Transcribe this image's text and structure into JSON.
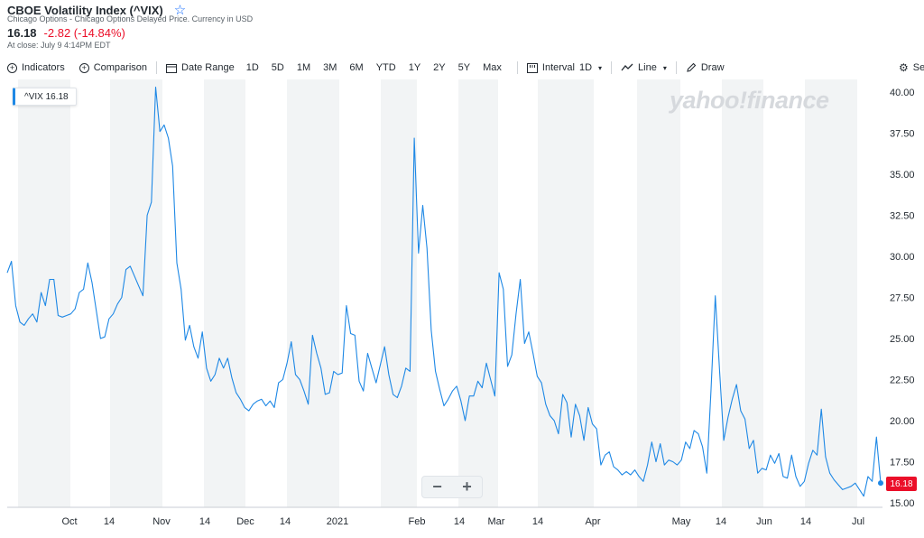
{
  "header": {
    "title": "CBOE Volatility Index (^VIX)",
    "subtitle": "Chicago Options - Chicago Options Delayed Price. Currency in USD",
    "price": "16.18",
    "change": "-2.82 (-14.84%)",
    "close_time": "At close: July 9 4:14PM EDT"
  },
  "toolbar": {
    "indicators": "Indicators",
    "comparison": "Comparison",
    "date_range": "Date Range",
    "ranges": [
      "1D",
      "5D",
      "1M",
      "3M",
      "6M",
      "YTD",
      "1Y",
      "2Y",
      "5Y",
      "Max"
    ],
    "interval_label": "Interval",
    "interval_value": "1D",
    "line": "Line",
    "draw": "Draw",
    "settings": "Se"
  },
  "legend": {
    "label": "^VIX 16.18"
  },
  "watermark": "yahoo!finance",
  "price_tag": "16.18",
  "zoom": {
    "minus": "−",
    "plus": "+"
  },
  "colors": {
    "line": "#1e88e5",
    "negative": "#eb0f29",
    "band": "#f2f4f5",
    "last_point": "#1e88e5"
  },
  "chart_data": {
    "type": "line",
    "series": [
      {
        "name": "^VIX"
      }
    ],
    "x_ticks": [
      "Oct",
      "14",
      "Nov",
      "14",
      "Dec",
      "14",
      "2021",
      "Feb",
      "14",
      "Mar",
      "14",
      "Apr",
      "May",
      "14",
      "Jun",
      "14",
      "Jul"
    ],
    "y_ticks": [
      "40.00",
      "37.50",
      "35.00",
      "32.50",
      "30.00",
      "27.50",
      "25.00",
      "22.50",
      "20.00",
      "17.50",
      "15.00"
    ],
    "ylim": [
      15,
      40
    ],
    "values": [
      29.0,
      29.7,
      27.0,
      26.0,
      25.8,
      26.2,
      26.5,
      26.0,
      27.8,
      27.0,
      28.6,
      28.6,
      26.4,
      26.3,
      26.4,
      26.5,
      26.8,
      27.8,
      28.0,
      29.6,
      28.4,
      26.7,
      25.0,
      25.1,
      26.2,
      26.5,
      27.1,
      27.5,
      29.2,
      29.4,
      28.8,
      28.2,
      27.6,
      32.5,
      33.3,
      40.3,
      37.6,
      38.0,
      37.2,
      35.5,
      29.6,
      28.0,
      24.9,
      25.8,
      24.5,
      23.8,
      25.4,
      23.2,
      22.4,
      22.8,
      23.8,
      23.2,
      23.8,
      22.6,
      21.7,
      21.3,
      20.8,
      20.6,
      21.0,
      21.2,
      21.3,
      20.9,
      21.2,
      20.8,
      22.3,
      22.5,
      23.5,
      24.8,
      22.8,
      22.5,
      21.8,
      21.0,
      25.2,
      24.1,
      23.2,
      21.6,
      21.7,
      23.0,
      22.8,
      22.9,
      27.0,
      25.3,
      25.2,
      22.4,
      21.8,
      24.1,
      23.2,
      22.3,
      23.4,
      24.5,
      22.8,
      21.6,
      21.4,
      22.1,
      23.2,
      23.0,
      37.2,
      30.2,
      33.1,
      30.5,
      25.5,
      23.0,
      21.9,
      20.9,
      21.3,
      21.8,
      22.1,
      21.2,
      20.0,
      21.5,
      21.5,
      22.4,
      22.0,
      23.5,
      22.5,
      21.5,
      29.0,
      28.0,
      23.3,
      24.0,
      26.5,
      28.6,
      24.7,
      25.4,
      24.1,
      22.7,
      22.3,
      21.0,
      20.3,
      20.0,
      19.2,
      21.6,
      21.1,
      19.0,
      21.0,
      20.3,
      18.8,
      20.8,
      19.8,
      19.5,
      17.3,
      17.9,
      18.1,
      17.2,
      17.0,
      16.7,
      16.9,
      16.7,
      17.0,
      16.6,
      16.3,
      17.3,
      18.7,
      17.5,
      18.6,
      17.3,
      17.6,
      17.5,
      17.3,
      17.6,
      18.7,
      18.3,
      19.4,
      19.2,
      18.4,
      16.8,
      21.9,
      27.6,
      23.1,
      18.8,
      20.2,
      21.3,
      22.2,
      20.6,
      20.1,
      18.3,
      18.8,
      16.8,
      17.1,
      17.0,
      17.9,
      17.4,
      18.0,
      16.6,
      16.5,
      17.9,
      16.6,
      16.0,
      16.3,
      17.4,
      18.2,
      17.9,
      20.7,
      17.8,
      16.8,
      16.4,
      16.1,
      15.8,
      15.9,
      16.0,
      16.2,
      15.8,
      15.4,
      16.6,
      16.3,
      19.0,
      16.2
    ]
  }
}
